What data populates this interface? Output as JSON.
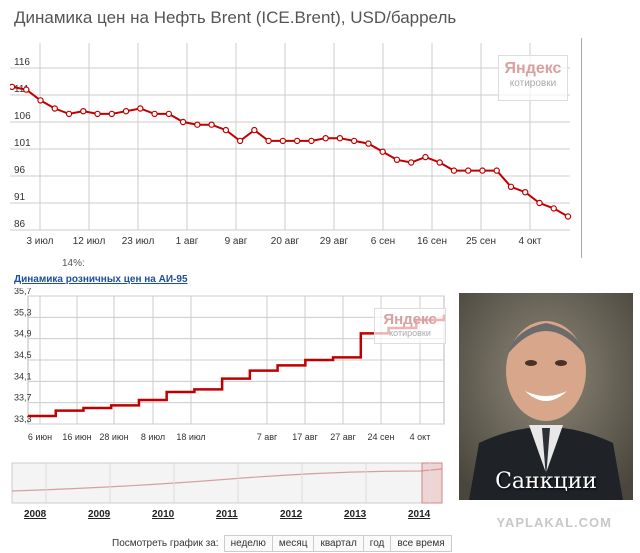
{
  "chart1": {
    "title": "Динамика цен на Нефть Brent (ICE.Brent), USD/баррель",
    "watermark": {
      "brand": "Яндекс",
      "sub": "котировки"
    },
    "y_ticks": [
      "116",
      "111",
      "106",
      "101",
      "96",
      "91",
      "86"
    ],
    "x_ticks": [
      "3 июл",
      "12 июл",
      "23 июл",
      "1 авг",
      "9 авг",
      "20 авг",
      "29 авг",
      "6 сен",
      "16 сен",
      "25 сен",
      "4 окт"
    ]
  },
  "pct_note": "14%:",
  "chart2": {
    "title": "Динамика розничных цен на АИ-95",
    "watermark": {
      "brand": "Яндекс",
      "sub": "котировки"
    },
    "y_ticks": [
      "35,7",
      "35,3",
      "34,9",
      "34,5",
      "34,1",
      "33,7",
      "33,3"
    ],
    "x_ticks": [
      "6 июн",
      "16 июн",
      "28 июн",
      "8 июл",
      "18 июл",
      "7 авг",
      "17 авг",
      "27 авг",
      "24 сен",
      "4 окт"
    ],
    "years": [
      "2008",
      "2009",
      "2010",
      "2011",
      "2012",
      "2013",
      "2014"
    ]
  },
  "photo": {
    "caption": "Санкции"
  },
  "site_mark": "YAPLAKAL.COM",
  "period": {
    "label": "Посмотреть график за:",
    "buttons": [
      "неделю",
      "месяц",
      "квартал",
      "год",
      "все время"
    ]
  },
  "colors": {
    "line": "#c00000",
    "grid": "#cccccc",
    "accent": "#1f4e9a"
  },
  "chart_data": [
    {
      "type": "line",
      "title": "Динамика цен на Нефть Brent (ICE.Brent), USD/баррель",
      "xlabel": "",
      "ylabel": "",
      "ylim": [
        86,
        116
      ],
      "grid": true,
      "markers": true,
      "x": [
        "3 июл",
        "5 июл",
        "8 июл",
        "10 июл",
        "12 июл",
        "15 июл",
        "17 июл",
        "19 июл",
        "23 июл",
        "26 июл",
        "29 июл",
        "1 авг",
        "4 авг",
        "6 авг",
        "9 авг",
        "12 авг",
        "15 авг",
        "18 авг",
        "20 авг",
        "22 авг",
        "25 авг",
        "27 авг",
        "29 авг",
        "1 сен",
        "3 сен",
        "6 сен",
        "9 сен",
        "12 сен",
        "14 сен",
        "16 сен",
        "19 сен",
        "21 сен",
        "25 сен",
        "27 сен",
        "30 сен",
        "2 окт",
        "4 окт",
        "6 окт",
        "8 окт",
        "10 окт"
      ],
      "values": [
        112.5,
        112,
        110,
        108.5,
        107.5,
        108,
        107.5,
        107.5,
        108,
        108.5,
        107.5,
        107.5,
        106,
        105.5,
        105.5,
        104.5,
        102.5,
        104.5,
        102.5,
        102.5,
        102.5,
        102.5,
        103,
        103,
        102.5,
        102,
        100.5,
        99,
        98.5,
        99.5,
        98.5,
        97,
        97,
        97,
        97,
        94,
        93,
        91,
        90,
        88.5
      ]
    },
    {
      "type": "line",
      "title": "Динамика розничных цен на АИ-95",
      "xlabel": "",
      "ylabel": "",
      "ylim": [
        33.3,
        35.7
      ],
      "grid": true,
      "x": [
        "1 июн",
        "6 июн",
        "16 июн",
        "28 июн",
        "8 июл",
        "18 июл",
        "28 июл",
        "7 авг",
        "17 авг",
        "27 авг",
        "6 сен",
        "14 сен",
        "16 сен",
        "24 сен",
        "4 окт",
        "14 окт"
      ],
      "values": [
        33.45,
        33.55,
        33.6,
        33.65,
        33.75,
        33.9,
        33.95,
        34.15,
        34.3,
        34.4,
        34.5,
        34.55,
        35.0,
        35.1,
        35.25,
        35.35
      ]
    }
  ]
}
